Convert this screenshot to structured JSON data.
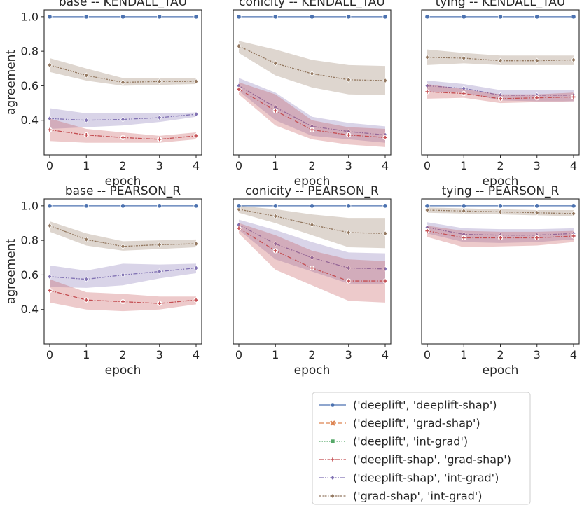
{
  "chart_data": {
    "type": "line",
    "xlabel": "epoch",
    "ylabel": "agreement",
    "x": [
      0,
      1,
      2,
      3,
      4
    ],
    "ylim": [
      0.2,
      1.04
    ],
    "yticks": [
      "0.4",
      "0.6",
      "0.8",
      "1.0"
    ],
    "xticks": [
      "0",
      "1",
      "2",
      "3",
      "4"
    ],
    "legend": {
      "placement": "bottom-right, below plots",
      "entries": [
        {
          "label": "('deeplift', 'deeplift-shap')",
          "color": "#4c72b0",
          "marker": "circle",
          "dash": "solid"
        },
        {
          "label": "('deeplift', 'grad-shap')",
          "color": "#dd8452",
          "marker": "x",
          "dash": "dashed"
        },
        {
          "label": "('deeplift', 'int-grad')",
          "color": "#55a868",
          "marker": "square",
          "dash": "dotted"
        },
        {
          "label": "('deeplift-shap', 'grad-shap')",
          "color": "#c44e52",
          "marker": "plus",
          "dash": "dashdot"
        },
        {
          "label": "('deeplift-shap', 'int-grad')",
          "color": "#8172b3",
          "marker": "diamond",
          "dash": "dashdotdot"
        },
        {
          "label": "('grad-shap', 'int-grad')",
          "color": "#937860",
          "marker": "diamond",
          "dash": "densedot"
        }
      ]
    },
    "panels": [
      {
        "title": "base -- KENDALL_TAU",
        "series": [
          {
            "name": "('deeplift', 'deeplift-shap')",
            "values": [
              1.0,
              1.0,
              1.0,
              1.0,
              1.0
            ],
            "lo": [
              1.0,
              1.0,
              1.0,
              1.0,
              1.0
            ],
            "hi": [
              1.0,
              1.0,
              1.0,
              1.0,
              1.0
            ]
          },
          {
            "name": "('deeplift-shap', 'grad-shap')",
            "values": [
              0.345,
              0.315,
              0.3,
              0.29,
              0.31
            ],
            "lo": [
              0.28,
              0.27,
              0.27,
              0.27,
              0.29
            ],
            "hi": [
              0.41,
              0.35,
              0.33,
              0.31,
              0.33
            ]
          },
          {
            "name": "('deeplift-shap', 'int-grad')",
            "values": [
              0.41,
              0.4,
              0.405,
              0.415,
              0.435
            ],
            "lo": [
              0.35,
              0.36,
              0.37,
              0.39,
              0.42
            ],
            "hi": [
              0.47,
              0.44,
              0.44,
              0.44,
              0.445
            ]
          },
          {
            "name": "('grad-shap', 'int-grad')",
            "values": [
              0.72,
              0.66,
              0.62,
              0.625,
              0.625
            ],
            "lo": [
              0.68,
              0.63,
              0.6,
              0.605,
              0.61
            ],
            "hi": [
              0.76,
              0.7,
              0.645,
              0.645,
              0.645
            ]
          }
        ]
      },
      {
        "title": "conicity -- KENDALL_TAU",
        "series": [
          {
            "name": "('deeplift', 'deeplift-shap')",
            "values": [
              1.0,
              1.0,
              1.0,
              1.0,
              1.0
            ],
            "lo": [
              1.0,
              1.0,
              1.0,
              1.0,
              1.0
            ],
            "hi": [
              1.0,
              1.0,
              1.0,
              1.0,
              1.0
            ]
          },
          {
            "name": "('deeplift-shap', 'grad-shap')",
            "values": [
              0.58,
              0.455,
              0.345,
              0.315,
              0.3
            ],
            "lo": [
              0.55,
              0.37,
              0.29,
              0.26,
              0.245
            ],
            "hi": [
              0.62,
              0.55,
              0.4,
              0.36,
              0.35
            ]
          },
          {
            "name": "('deeplift-shap', 'int-grad')",
            "values": [
              0.6,
              0.475,
              0.365,
              0.335,
              0.315
            ],
            "lo": [
              0.57,
              0.4,
              0.31,
              0.29,
              0.27
            ],
            "hi": [
              0.645,
              0.56,
              0.42,
              0.385,
              0.365
            ]
          },
          {
            "name": "('grad-shap', 'int-grad')",
            "values": [
              0.83,
              0.73,
              0.67,
              0.635,
              0.63
            ],
            "lo": [
              0.79,
              0.66,
              0.59,
              0.55,
              0.545
            ],
            "hi": [
              0.86,
              0.81,
              0.75,
              0.72,
              0.715
            ]
          }
        ]
      },
      {
        "title": "tying -- KENDALL_TAU",
        "series": [
          {
            "name": "('deeplift', 'deeplift-shap')",
            "values": [
              1.0,
              1.0,
              1.0,
              1.0,
              1.0
            ],
            "lo": [
              1.0,
              1.0,
              1.0,
              1.0,
              1.0
            ],
            "hi": [
              1.0,
              1.0,
              1.0,
              1.0,
              1.0
            ]
          },
          {
            "name": "('deeplift-shap', 'grad-shap')",
            "values": [
              0.565,
              0.555,
              0.525,
              0.53,
              0.535
            ],
            "lo": [
              0.525,
              0.53,
              0.5,
              0.505,
              0.51
            ],
            "hi": [
              0.61,
              0.58,
              0.55,
              0.55,
              0.56
            ]
          },
          {
            "name": "('deeplift-shap', 'int-grad')",
            "values": [
              0.6,
              0.585,
              0.545,
              0.545,
              0.545
            ],
            "lo": [
              0.565,
              0.56,
              0.515,
              0.51,
              0.51
            ],
            "hi": [
              0.63,
              0.61,
              0.575,
              0.575,
              0.575
            ]
          },
          {
            "name": "('grad-shap', 'int-grad')",
            "values": [
              0.765,
              0.76,
              0.745,
              0.745,
              0.75
            ],
            "lo": [
              0.72,
              0.73,
              0.72,
              0.72,
              0.72
            ],
            "hi": [
              0.81,
              0.79,
              0.775,
              0.775,
              0.775
            ]
          }
        ]
      },
      {
        "title": "base -- PEARSON_R",
        "series": [
          {
            "name": "('deeplift', 'deeplift-shap')",
            "values": [
              1.0,
              1.0,
              1.0,
              1.0,
              1.0
            ],
            "lo": [
              1.0,
              1.0,
              1.0,
              1.0,
              1.0
            ],
            "hi": [
              1.0,
              1.0,
              1.0,
              1.0,
              1.0
            ]
          },
          {
            "name": "('deeplift-shap', 'grad-shap')",
            "values": [
              0.51,
              0.455,
              0.445,
              0.435,
              0.455
            ],
            "lo": [
              0.44,
              0.4,
              0.39,
              0.4,
              0.43
            ],
            "hi": [
              0.575,
              0.5,
              0.49,
              0.475,
              0.475
            ]
          },
          {
            "name": "('deeplift-shap', 'int-grad')",
            "values": [
              0.59,
              0.575,
              0.6,
              0.62,
              0.64
            ],
            "lo": [
              0.53,
              0.525,
              0.54,
              0.58,
              0.61
            ],
            "hi": [
              0.655,
              0.625,
              0.665,
              0.66,
              0.665
            ]
          },
          {
            "name": "('grad-shap', 'int-grad')",
            "values": [
              0.885,
              0.805,
              0.765,
              0.775,
              0.78
            ],
            "lo": [
              0.85,
              0.77,
              0.74,
              0.75,
              0.76
            ],
            "hi": [
              0.91,
              0.84,
              0.795,
              0.8,
              0.805
            ]
          }
        ]
      },
      {
        "title": "conicity -- PEARSON_R",
        "series": [
          {
            "name": "('deeplift', 'deeplift-shap')",
            "values": [
              1.0,
              1.0,
              1.0,
              1.0,
              1.0
            ],
            "lo": [
              1.0,
              1.0,
              1.0,
              1.0,
              1.0
            ],
            "hi": [
              1.0,
              1.0,
              1.0,
              1.0,
              1.0
            ]
          },
          {
            "name": "('deeplift-shap', 'grad-shap')",
            "values": [
              0.87,
              0.74,
              0.64,
              0.565,
              0.565
            ],
            "lo": [
              0.84,
              0.63,
              0.54,
              0.45,
              0.44
            ],
            "hi": [
              0.9,
              0.83,
              0.74,
              0.69,
              0.68
            ]
          },
          {
            "name": "('deeplift-shap', 'int-grad')",
            "values": [
              0.89,
              0.78,
              0.7,
              0.64,
              0.635
            ],
            "lo": [
              0.86,
              0.69,
              0.62,
              0.55,
              0.545
            ],
            "hi": [
              0.92,
              0.86,
              0.79,
              0.73,
              0.725
            ]
          },
          {
            "name": "('grad-shap', 'int-grad')",
            "values": [
              0.98,
              0.94,
              0.89,
              0.845,
              0.84
            ],
            "lo": [
              0.96,
              0.9,
              0.83,
              0.76,
              0.755
            ],
            "hi": [
              1.0,
              0.98,
              0.95,
              0.93,
              0.93
            ]
          }
        ]
      },
      {
        "title": "tying -- PEARSON_R",
        "series": [
          {
            "name": "('deeplift', 'deeplift-shap')",
            "values": [
              1.0,
              1.0,
              1.0,
              1.0,
              1.0
            ],
            "lo": [
              1.0,
              1.0,
              1.0,
              1.0,
              1.0
            ],
            "hi": [
              1.0,
              1.0,
              1.0,
              1.0,
              1.0
            ]
          },
          {
            "name": "('deeplift-shap', 'grad-shap')",
            "values": [
              0.855,
              0.815,
              0.815,
              0.815,
              0.825
            ],
            "lo": [
              0.82,
              0.76,
              0.765,
              0.77,
              0.79
            ],
            "hi": [
              0.885,
              0.855,
              0.85,
              0.85,
              0.855
            ]
          },
          {
            "name": "('deeplift-shap', 'int-grad')",
            "values": [
              0.875,
              0.835,
              0.83,
              0.83,
              0.84
            ],
            "lo": [
              0.84,
              0.79,
              0.785,
              0.79,
              0.805
            ],
            "hi": [
              0.905,
              0.87,
              0.865,
              0.865,
              0.87
            ]
          },
          {
            "name": "('grad-shap', 'int-grad')",
            "values": [
              0.975,
              0.97,
              0.965,
              0.96,
              0.955
            ],
            "lo": [
              0.96,
              0.955,
              0.95,
              0.945,
              0.94
            ],
            "hi": [
              0.99,
              0.985,
              0.98,
              0.975,
              0.975
            ]
          }
        ]
      }
    ]
  }
}
